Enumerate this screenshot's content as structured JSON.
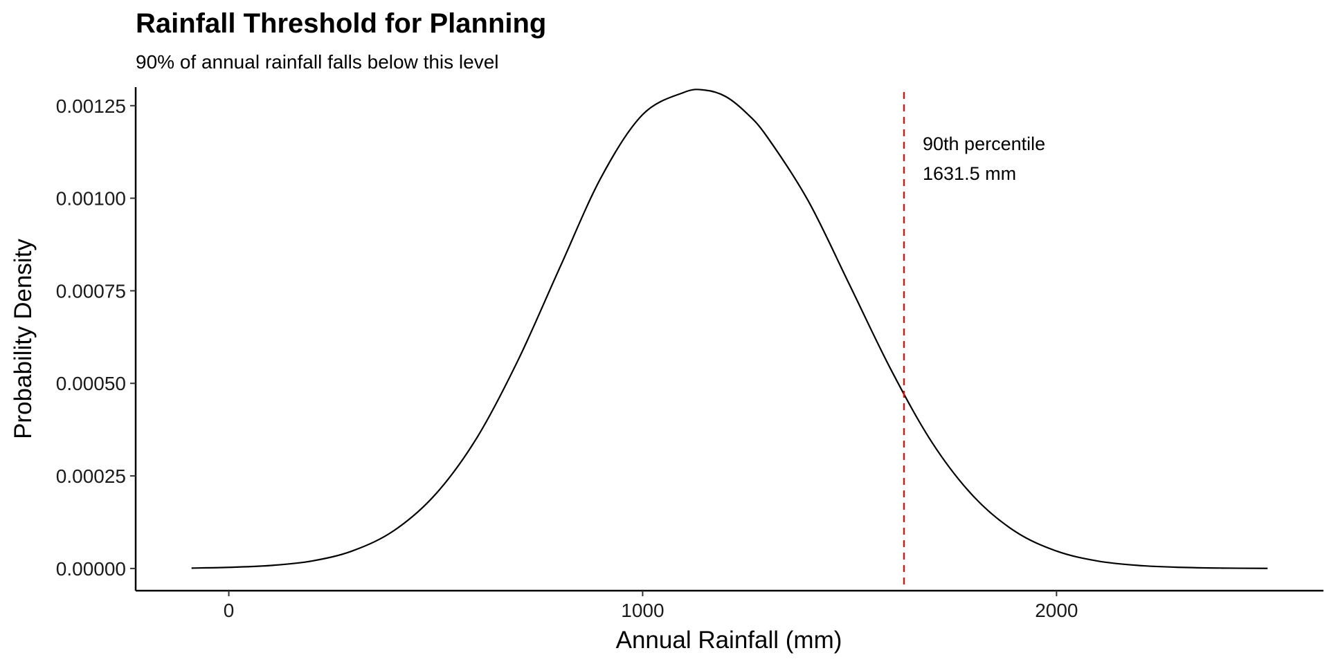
{
  "chart_data": {
    "type": "line",
    "title": "Rainfall Threshold for Planning",
    "subtitle": "90% of annual rainfall falls below this level",
    "xlabel": "Annual Rainfall (mm)",
    "ylabel": "Probability Density",
    "xlim": [
      -225,
      2645
    ],
    "ylim": [
      -6e-05,
      0.0013
    ],
    "x_ticks": [
      0,
      1000,
      2000
    ],
    "x_tick_labels": [
      "0",
      "1000",
      "2000"
    ],
    "y_ticks": [
      0,
      0.00025,
      0.0005,
      0.00075,
      0.001,
      0.00125
    ],
    "y_tick_labels": [
      "0.00000",
      "0.00025",
      "0.00050",
      "0.00075",
      "0.00100",
      "0.00125"
    ],
    "grid": false,
    "series": [
      {
        "color": "#000000",
        "x": [
          -90,
          0,
          100,
          200,
          300,
          400,
          500,
          600,
          700,
          800,
          900,
          1000,
          1100,
          1150,
          1200,
          1250,
          1300,
          1400,
          1500,
          1600,
          1700,
          1800,
          1900,
          2000,
          2100,
          2200,
          2300,
          2400,
          2510
        ],
        "y": [
          1e-06,
          3e-06,
          8e-06,
          2e-05,
          4.8e-05,
          0.000103,
          0.000201,
          0.000354,
          0.000565,
          0.000813,
          0.001057,
          0.001226,
          0.001286,
          0.001292,
          0.001275,
          0.001231,
          0.001167,
          0.000993,
          0.000766,
          0.000537,
          0.000339,
          0.000194,
          0.0001,
          4.7e-05,
          2e-05,
          8e-06,
          3e-06,
          1e-06,
          3e-07
        ]
      }
    ],
    "reference_line": {
      "x": 1631.5,
      "color": "#ff0000",
      "style": "dashed"
    },
    "annotation": {
      "line1": "90th percentile",
      "line2": "1631.5 mm"
    }
  }
}
